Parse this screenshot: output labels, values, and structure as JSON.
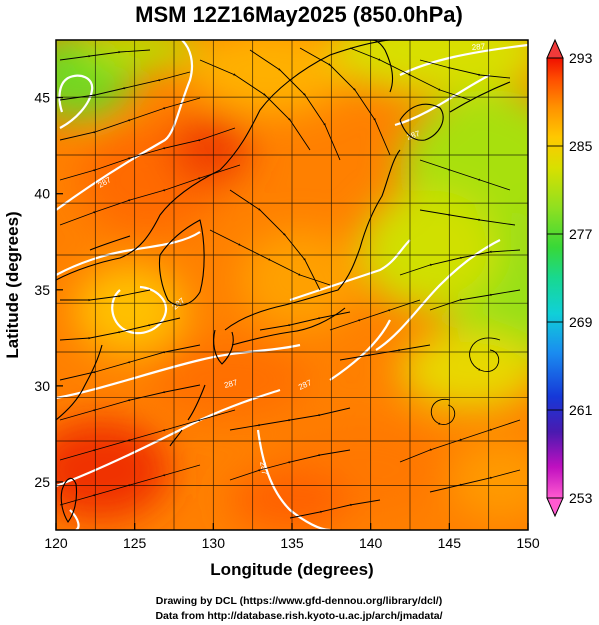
{
  "chart_data": {
    "type": "heatmap",
    "title": "MSM 12Z16May2025 (850.0hPa)",
    "xlabel": "Longitude (degrees)",
    "ylabel": "Latitude  (degrees)",
    "xlim": [
      120,
      150
    ],
    "ylim": [
      22.5,
      48
    ],
    "xticks": [
      "120",
      "125",
      "130",
      "135",
      "140",
      "145",
      "150"
    ],
    "yticks": [
      "25",
      "30",
      "35",
      "40",
      "45"
    ],
    "colorbar": {
      "min": 253,
      "max": 293,
      "ticks": [
        "293",
        "285",
        "277",
        "269",
        "261",
        "253"
      ],
      "colors": [
        "#ff5ad0",
        "#c010c0",
        "#4a1ab0",
        "#1638d8",
        "#1a8cf0",
        "#10d0d8",
        "#18d890",
        "#38d838",
        "#90e020",
        "#d8e000",
        "#ffc800",
        "#ff9000",
        "#ff5000",
        "#f01000"
      ]
    },
    "field": "temperature (K) with wind streamlines",
    "contour_labels": [
      "287",
      "287",
      "287",
      "287",
      "287",
      "287",
      "287"
    ],
    "grid": true
  },
  "credits": {
    "line1": "Drawing by DCL (https://www.gfd-dennou.org/library/dcl/)",
    "line2": "Data from http://database.rish.kyoto-u.ac.jp/arch/jmadata/"
  }
}
